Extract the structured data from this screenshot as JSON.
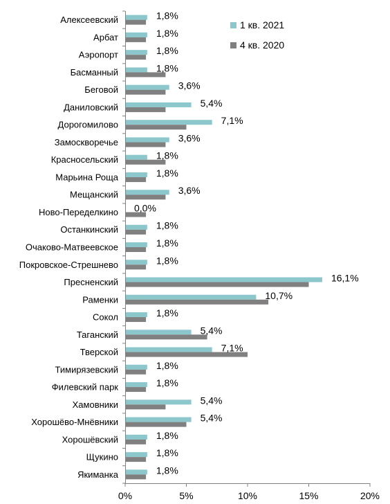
{
  "chart_data": {
    "type": "bar",
    "orientation": "horizontal",
    "categories": [
      "Алексеевский",
      "Арбат",
      "Аэропорт",
      "Басманный",
      "Беговой",
      "Даниловский",
      "Дорогомилово",
      "Замоскворечье",
      "Красносельский",
      "Марьина Роща",
      "Мещанский",
      "Ново-Переделкино",
      "Останкинский",
      "Очаково-Матвеевское",
      "Покровское-Стрешнево",
      "Пресненский",
      "Раменки",
      "Сокол",
      "Таганский",
      "Тверской",
      "Тимирязевский",
      "Филевский парк",
      "Хамовники",
      "Хорошёво-Мнёвники",
      "Хорошёвский",
      "Щукино",
      "Якиманка"
    ],
    "series": [
      {
        "name": "1 кв. 2021",
        "color": "#8cc7cc",
        "values": [
          1.8,
          1.8,
          1.8,
          1.8,
          3.6,
          5.4,
          7.1,
          3.6,
          1.8,
          1.8,
          3.6,
          0.0,
          1.8,
          1.8,
          1.8,
          16.1,
          10.7,
          1.8,
          5.4,
          7.1,
          1.8,
          1.8,
          5.4,
          5.4,
          1.8,
          1.8,
          1.8
        ],
        "labels": [
          "1,8%",
          "1,8%",
          "1,8%",
          "1,8%",
          "3,6%",
          "5,4%",
          "7,1%",
          "3,6%",
          "1,8%",
          "1,8%",
          "3,6%",
          "0,0%",
          "1,8%",
          "1,8%",
          "1,8%",
          "16,1%",
          "10,7%",
          "1,8%",
          "5,4%",
          "7,1%",
          "1,8%",
          "1,8%",
          "5,4%",
          "5,4%",
          "1,8%",
          "1,8%",
          "1,8%"
        ]
      },
      {
        "name": "4 кв. 2020",
        "color": "#808080",
        "values": [
          1.7,
          1.7,
          1.7,
          3.3,
          3.3,
          3.3,
          5.0,
          3.3,
          3.3,
          1.7,
          3.3,
          1.7,
          1.7,
          1.7,
          1.7,
          15.0,
          11.7,
          1.7,
          6.7,
          10.0,
          1.7,
          1.7,
          3.3,
          5.0,
          1.7,
          1.7,
          1.7
        ]
      }
    ],
    "xlim": [
      0,
      20
    ],
    "xticks": [
      0,
      5,
      10,
      15,
      20
    ],
    "xtick_labels": [
      "0%",
      "5%",
      "10%",
      "15%",
      "20%"
    ],
    "legend_position": "top-right",
    "grid": false
  }
}
